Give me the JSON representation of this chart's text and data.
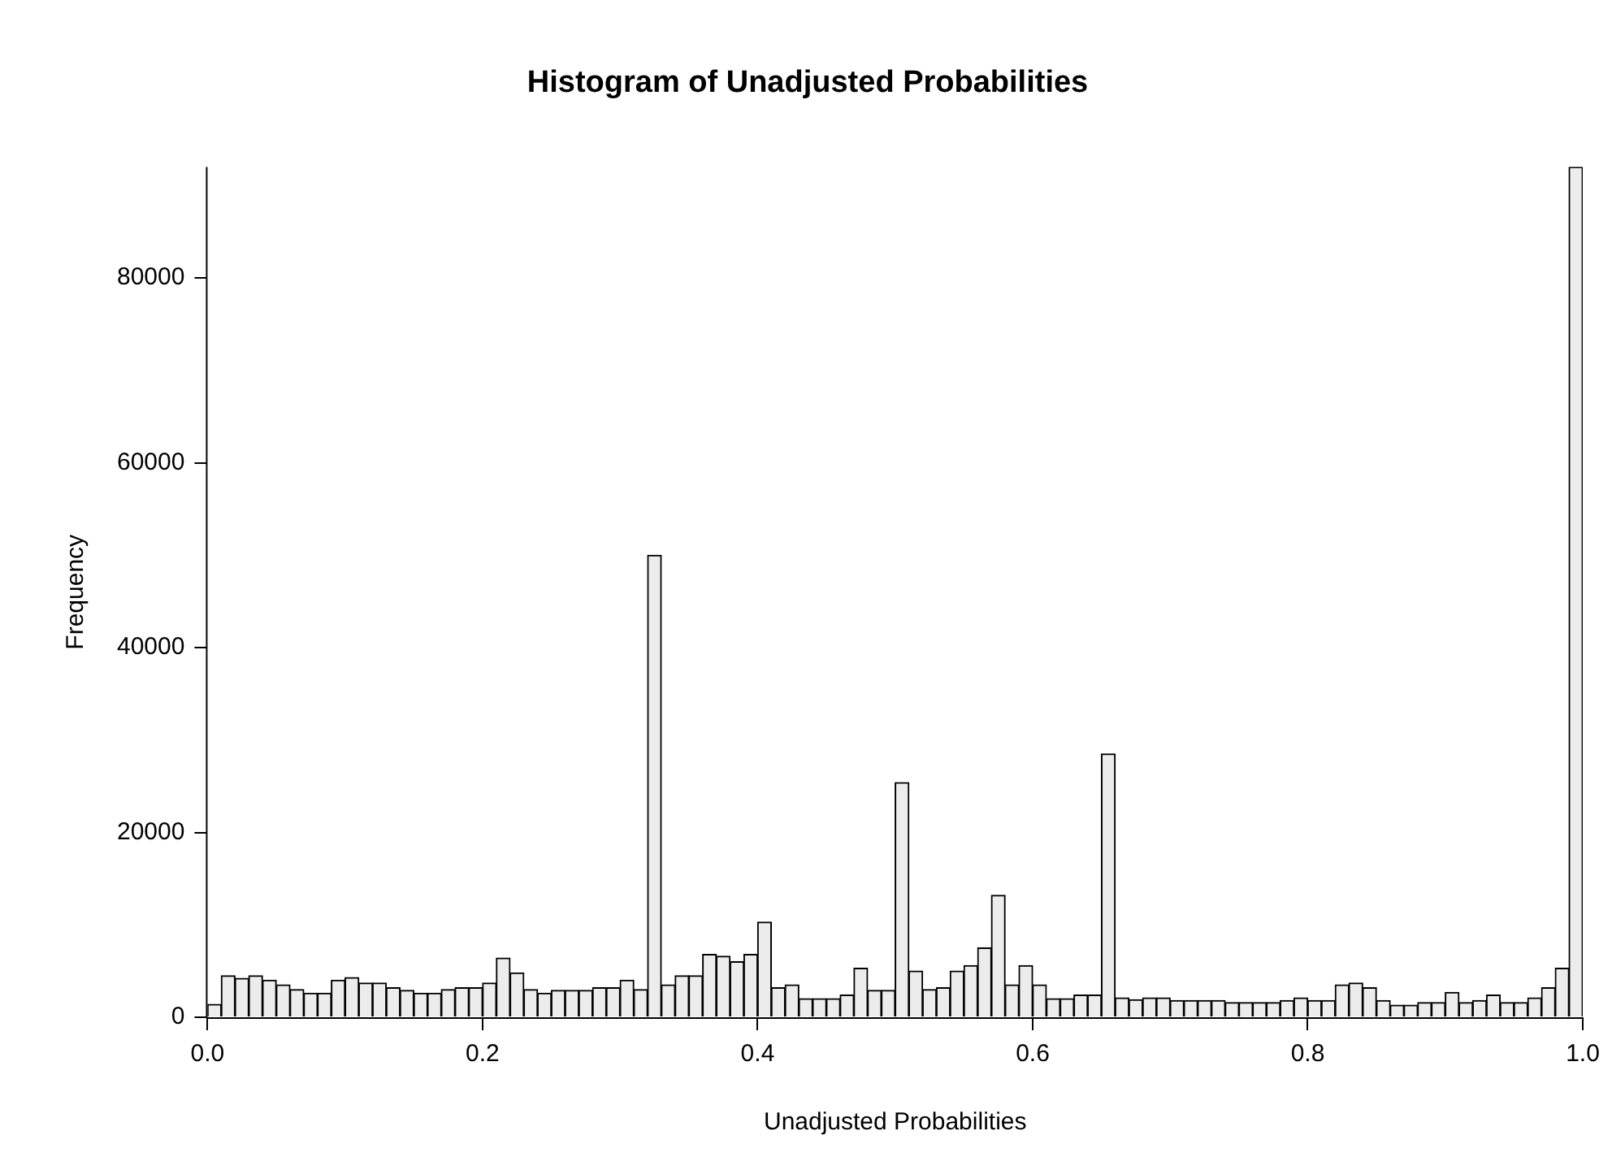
{
  "chart_data": {
    "type": "histogram",
    "title": "Histogram of Unadjusted Probabilities",
    "xlabel": "Unadjusted Probabilities",
    "ylabel": "Frequency",
    "bins": [
      0,
      0.01,
      0.02,
      0.03,
      0.04,
      0.05,
      0.06,
      0.07,
      0.08,
      0.09,
      0.1,
      0.11,
      0.12,
      0.13,
      0.14,
      0.15,
      0.16,
      0.17,
      0.18,
      0.19,
      0.2,
      0.21,
      0.22,
      0.23,
      0.24,
      0.25,
      0.26,
      0.27,
      0.28,
      0.29,
      0.3,
      0.31,
      0.32,
      0.33,
      0.34,
      0.35,
      0.36,
      0.37,
      0.38,
      0.39,
      0.4,
      0.41,
      0.42,
      0.43,
      0.44,
      0.45,
      0.46,
      0.47,
      0.48,
      0.49,
      0.5,
      0.51,
      0.52,
      0.53,
      0.54,
      0.55,
      0.56,
      0.57,
      0.58,
      0.59,
      0.6,
      0.61,
      0.62,
      0.63,
      0.64,
      0.65,
      0.66,
      0.67,
      0.68,
      0.69,
      0.7,
      0.71,
      0.72,
      0.73,
      0.74,
      0.75,
      0.76,
      0.77,
      0.78,
      0.79,
      0.8,
      0.81,
      0.82,
      0.83,
      0.84,
      0.85,
      0.86,
      0.87,
      0.88,
      0.89,
      0.9,
      0.91,
      0.92,
      0.93,
      0.94,
      0.95,
      0.96,
      0.97,
      0.98,
      0.99,
      1
    ],
    "values": [
      1400,
      4500,
      4200,
      4500,
      4000,
      3500,
      3000,
      2600,
      2600,
      4000,
      4300,
      3700,
      3700,
      3200,
      2900,
      2600,
      2600,
      3000,
      3200,
      3200,
      3700,
      6400,
      4800,
      3000,
      2600,
      2900,
      2900,
      2900,
      3200,
      3200,
      4000,
      3000,
      50000,
      3500,
      4500,
      4500,
      6800,
      6600,
      6000,
      6800,
      10300,
      3200,
      3500,
      2000,
      2000,
      2000,
      2400,
      5300,
      2900,
      2900,
      25400,
      5000,
      3000,
      3200,
      5000,
      5600,
      7500,
      13200,
      3500,
      5600,
      3500,
      2000,
      2000,
      2400,
      2400,
      28500,
      2100,
      1900,
      2100,
      2100,
      1800,
      1800,
      1800,
      1800,
      1600,
      1600,
      1600,
      1600,
      1800,
      2100,
      1800,
      1800,
      3500,
      3700,
      3200,
      1800,
      1300,
      1300,
      1600,
      1600,
      2700,
      1600,
      1800,
      2400,
      1600,
      1600,
      2100,
      3200,
      5300,
      92000
    ],
    "color": "#ececec",
    "xlim": [
      0,
      1
    ],
    "xticks": [
      {
        "value": 0,
        "label": "0.0"
      },
      {
        "value": 0.2,
        "label": "0.2"
      },
      {
        "value": 0.4,
        "label": "0.4"
      },
      {
        "value": 0.6,
        "label": "0.6"
      },
      {
        "value": 0.8,
        "label": "0.8"
      },
      {
        "value": 1,
        "label": "1.0"
      }
    ],
    "ylim": [
      0,
      92000
    ],
    "yticks": [
      0,
      20000,
      40000,
      60000,
      80000
    ],
    "grid": false,
    "legend": false
  }
}
